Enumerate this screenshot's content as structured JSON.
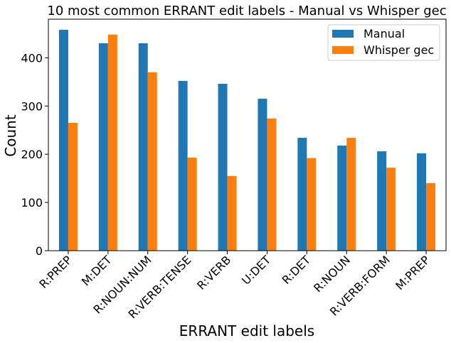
{
  "chart_data": {
    "type": "bar",
    "title": "10 most common ERRANT edit labels - Manual vs Whisper gec",
    "xlabel": "ERRANT edit labels",
    "ylabel": "Count",
    "categories": [
      "R:PREP",
      "M:DET",
      "R:NOUN:NUM",
      "R:VERB:TENSE",
      "R:VERB",
      "U:DET",
      "R:DET",
      "R:NOUN",
      "R:VERB:FORM",
      "M:PREP"
    ],
    "series": [
      {
        "name": "Manual",
        "values": [
          458,
          430,
          430,
          352,
          346,
          315,
          234,
          218,
          206,
          202
        ],
        "color": "#1f77b4"
      },
      {
        "name": "Whisper gec",
        "values": [
          265,
          448,
          370,
          193,
          155,
          274,
          192,
          234,
          172,
          140
        ],
        "color": "#ff7f0e"
      }
    ],
    "ylim": [
      0,
      480
    ],
    "yticks": [
      0,
      100,
      200,
      300,
      400
    ],
    "legend": "top-right",
    "grid": false
  }
}
